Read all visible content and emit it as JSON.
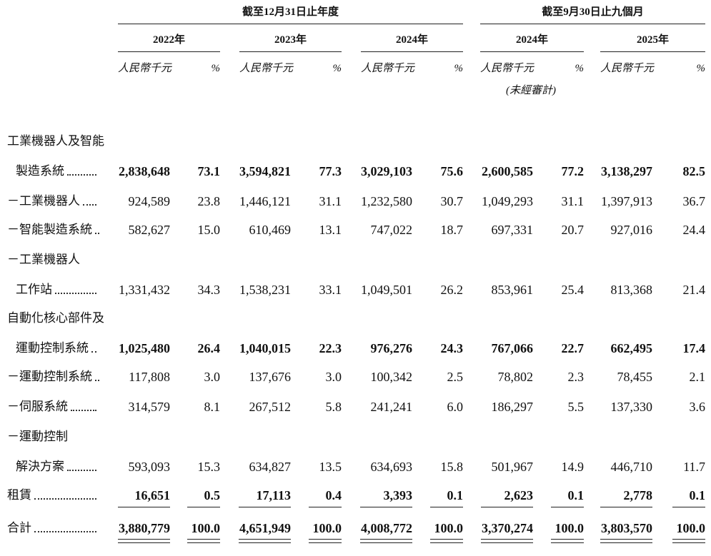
{
  "table": {
    "groups": [
      "截至12月31日止年度",
      "截至9月30日止九個月"
    ],
    "years": [
      "2022年",
      "2023年",
      "2024年",
      "2024年",
      "2025年"
    ],
    "unit_label": "人民幣千元",
    "percent_label": "%",
    "unaudited_note": "(未經審計)",
    "rows": [
      {
        "label": [
          "工業機器人及智能",
          "製造系統"
        ],
        "bold": true,
        "values": [
          "2,838,648",
          "73.1",
          "3,594,821",
          "77.3",
          "3,029,103",
          "75.6",
          "2,600,585",
          "77.2",
          "3,138,297",
          "82.5"
        ]
      },
      {
        "label": [
          "－工業機器人"
        ],
        "bold": false,
        "values": [
          "924,589",
          "23.8",
          "1,446,121",
          "31.1",
          "1,232,580",
          "30.7",
          "1,049,293",
          "31.1",
          "1,397,913",
          "36.7"
        ]
      },
      {
        "label": [
          "－智能製造系統"
        ],
        "bold": false,
        "values": [
          "582,627",
          "15.0",
          "610,469",
          "13.1",
          "747,022",
          "18.7",
          "697,331",
          "20.7",
          "927,016",
          "24.4"
        ]
      },
      {
        "label": [
          "－工業機器人",
          "工作站"
        ],
        "bold": false,
        "values": [
          "1,331,432",
          "34.3",
          "1,538,231",
          "33.1",
          "1,049,501",
          "26.2",
          "853,961",
          "25.4",
          "813,368",
          "21.4"
        ]
      },
      {
        "label": [
          "自動化核心部件及",
          "運動控制系統"
        ],
        "bold": true,
        "values": [
          "1,025,480",
          "26.4",
          "1,040,015",
          "22.3",
          "976,276",
          "24.3",
          "767,066",
          "22.7",
          "662,495",
          "17.4"
        ]
      },
      {
        "label": [
          "－運動控制系統"
        ],
        "bold": false,
        "values": [
          "117,808",
          "3.0",
          "137,676",
          "3.0",
          "100,342",
          "2.5",
          "78,802",
          "2.3",
          "78,455",
          "2.1"
        ]
      },
      {
        "label": [
          "－伺服系統"
        ],
        "bold": false,
        "values": [
          "314,579",
          "8.1",
          "267,512",
          "5.8",
          "241,241",
          "6.0",
          "186,297",
          "5.5",
          "137,330",
          "3.6"
        ]
      },
      {
        "label": [
          "－運動控制",
          "解決方案"
        ],
        "bold": false,
        "values": [
          "593,093",
          "15.3",
          "634,827",
          "13.5",
          "634,693",
          "15.8",
          "501,967",
          "14.9",
          "446,710",
          "11.7"
        ]
      },
      {
        "label": [
          "租賃"
        ],
        "bold": true,
        "underline": "single",
        "values": [
          "16,651",
          "0.5",
          "17,113",
          "0.4",
          "3,393",
          "0.1",
          "2,623",
          "0.1",
          "2,778",
          "0.1"
        ]
      },
      {
        "label": [
          "合計"
        ],
        "bold": true,
        "underline": "double",
        "values": [
          "3,880,779",
          "100.0",
          "4,651,949",
          "100.0",
          "4,008,772",
          "100.0",
          "3,370,274",
          "100.0",
          "3,803,570",
          "100.0"
        ]
      }
    ]
  }
}
